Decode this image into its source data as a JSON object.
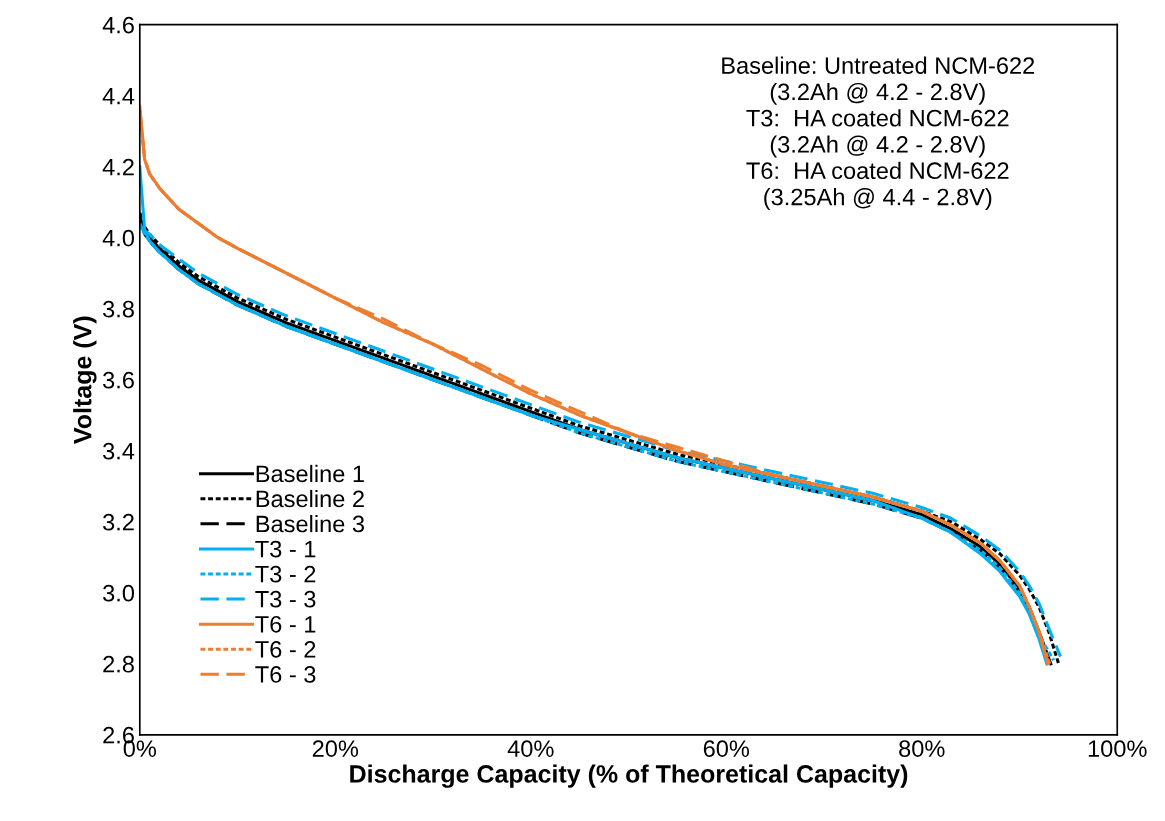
{
  "chart_data": {
    "type": "line",
    "xlabel": "Discharge Capacity (% of Theoretical Capacity)",
    "ylabel": "Voltage (V)",
    "x": [
      0,
      0.5,
      1,
      2,
      4,
      6,
      8,
      10,
      15,
      20,
      25,
      30,
      35,
      40,
      45,
      50,
      55,
      60,
      65,
      70,
      75,
      80,
      83,
      86,
      88,
      90,
      91,
      92,
      93
    ],
    "series": [
      {
        "name": "Baseline 1",
        "color": "#000000",
        "line_style": "solid",
        "x": [
          0,
          0.5,
          1,
          2,
          4,
          6,
          8,
          10,
          15,
          20,
          25,
          30,
          35,
          40,
          45,
          50,
          55,
          60,
          65,
          70,
          75,
          80,
          83,
          86,
          88,
          90,
          91,
          92,
          93.2
        ],
        "values": [
          4.06,
          4.02,
          4.0,
          3.97,
          3.92,
          3.88,
          3.85,
          3.82,
          3.76,
          3.71,
          3.66,
          3.61,
          3.56,
          3.51,
          3.46,
          3.42,
          3.38,
          3.35,
          3.32,
          3.29,
          3.26,
          3.22,
          3.18,
          3.13,
          3.08,
          3.01,
          2.96,
          2.89,
          2.8
        ]
      },
      {
        "name": "Baseline 2",
        "color": "#000000",
        "line_style": "dotted",
        "x": [
          0,
          0.5,
          1,
          2,
          4,
          6,
          8,
          10,
          15,
          20,
          25,
          30,
          35,
          40,
          45,
          50,
          55,
          60,
          65,
          70,
          75,
          80,
          83,
          86,
          88,
          90,
          91,
          92,
          93,
          94
        ],
        "values": [
          4.07,
          4.03,
          4.01,
          3.98,
          3.93,
          3.89,
          3.86,
          3.83,
          3.77,
          3.72,
          3.67,
          3.62,
          3.57,
          3.52,
          3.47,
          3.43,
          3.39,
          3.36,
          3.33,
          3.3,
          3.27,
          3.23,
          3.2,
          3.15,
          3.11,
          3.05,
          3.01,
          2.96,
          2.89,
          2.8
        ]
      },
      {
        "name": "Baseline 3",
        "color": "#000000",
        "line_style": "dashed",
        "values": [
          4.05,
          4.01,
          3.99,
          3.96,
          3.91,
          3.87,
          3.84,
          3.81,
          3.75,
          3.7,
          3.65,
          3.6,
          3.55,
          3.5,
          3.45,
          3.41,
          3.37,
          3.34,
          3.31,
          3.28,
          3.25,
          3.21,
          3.17,
          3.12,
          3.07,
          3.0,
          2.95,
          2.88,
          2.8
        ]
      },
      {
        "name": "T3 - 1",
        "color": "#00b0f0",
        "line_style": "solid",
        "x": [
          0,
          0.5,
          1,
          2,
          4,
          6,
          8,
          10,
          15,
          20,
          25,
          30,
          35,
          40,
          45,
          50,
          55,
          60,
          65,
          70,
          75,
          80,
          83,
          86,
          88,
          90,
          91,
          92,
          92.8
        ],
        "values": [
          4.2,
          4.02,
          3.99,
          3.96,
          3.91,
          3.87,
          3.84,
          3.81,
          3.75,
          3.7,
          3.65,
          3.6,
          3.55,
          3.5,
          3.46,
          3.42,
          3.38,
          3.35,
          3.32,
          3.29,
          3.26,
          3.21,
          3.17,
          3.11,
          3.06,
          2.99,
          2.94,
          2.87,
          2.8
        ]
      },
      {
        "name": "T3 - 2",
        "color": "#00b0f0",
        "line_style": "dotted",
        "x": [
          0,
          0.5,
          1,
          2,
          4,
          6,
          8,
          10,
          15,
          20,
          25,
          30,
          35,
          40,
          45,
          50,
          55,
          60,
          65,
          70,
          75,
          80,
          83,
          86,
          88,
          90,
          91,
          92,
          93.5
        ],
        "values": [
          4.04,
          4.01,
          3.99,
          3.96,
          3.91,
          3.87,
          3.84,
          3.81,
          3.75,
          3.7,
          3.65,
          3.6,
          3.55,
          3.5,
          3.45,
          3.41,
          3.37,
          3.34,
          3.31,
          3.28,
          3.25,
          3.21,
          3.17,
          3.12,
          3.07,
          3.0,
          2.95,
          2.88,
          2.81
        ]
      },
      {
        "name": "T3 - 3",
        "color": "#00b0f0",
        "line_style": "dashed",
        "x": [
          0,
          0.5,
          1,
          2,
          4,
          6,
          8,
          10,
          15,
          20,
          25,
          30,
          35,
          40,
          45,
          50,
          55,
          60,
          65,
          70,
          75,
          80,
          83,
          86,
          88,
          90,
          91,
          92,
          93,
          94.2
        ],
        "values": [
          4.03,
          4.02,
          4.01,
          3.98,
          3.94,
          3.9,
          3.87,
          3.84,
          3.78,
          3.73,
          3.68,
          3.63,
          3.58,
          3.53,
          3.48,
          3.44,
          3.4,
          3.37,
          3.34,
          3.31,
          3.28,
          3.24,
          3.21,
          3.16,
          3.12,
          3.06,
          3.02,
          2.97,
          2.9,
          2.82
        ]
      },
      {
        "name": "T6 - 1",
        "color": "#ed7d31",
        "line_style": "solid",
        "x": [
          0,
          0.5,
          1,
          2,
          4,
          6,
          8,
          10,
          15,
          20,
          25,
          30,
          35,
          40,
          45,
          50,
          55,
          60,
          65,
          70,
          75,
          80,
          83,
          86,
          88,
          90,
          91,
          92,
          92.9
        ],
        "values": [
          4.37,
          4.22,
          4.18,
          4.14,
          4.08,
          4.04,
          4.0,
          3.97,
          3.9,
          3.83,
          3.76,
          3.7,
          3.63,
          3.56,
          3.5,
          3.45,
          3.4,
          3.36,
          3.33,
          3.3,
          3.27,
          3.23,
          3.19,
          3.14,
          3.09,
          3.02,
          2.96,
          2.89,
          2.8
        ]
      },
      {
        "name": "T6 - 2",
        "color": "#ed7d31",
        "line_style": "dotted",
        "x": [
          0,
          0.5,
          1,
          2,
          4,
          6,
          8,
          10,
          15,
          20,
          25,
          30,
          35,
          40,
          45,
          50,
          55,
          60,
          65,
          70,
          75,
          80,
          83,
          86,
          88,
          90,
          91,
          92,
          93.1
        ],
        "values": [
          4.36,
          4.22,
          4.18,
          4.14,
          4.08,
          4.04,
          4.0,
          3.97,
          3.9,
          3.83,
          3.76,
          3.7,
          3.63,
          3.56,
          3.5,
          3.45,
          3.4,
          3.36,
          3.33,
          3.3,
          3.27,
          3.23,
          3.19,
          3.14,
          3.09,
          3.02,
          2.96,
          2.89,
          2.8
        ]
      },
      {
        "name": "T6 - 3",
        "color": "#ed7d31",
        "line_style": "dashed",
        "values": [
          4.35,
          4.22,
          4.18,
          4.14,
          4.08,
          4.04,
          4.0,
          3.97,
          3.9,
          3.83,
          3.77,
          3.7,
          3.64,
          3.57,
          3.51,
          3.45,
          3.41,
          3.37,
          3.33,
          3.3,
          3.27,
          3.23,
          3.19,
          3.14,
          3.09,
          3.02,
          2.96,
          2.89,
          2.8
        ]
      }
    ],
    "xlim": [
      0,
      100
    ],
    "xticks": [
      {
        "value": 0,
        "label": "0%"
      },
      {
        "value": 20,
        "label": "20%"
      },
      {
        "value": 40,
        "label": "40%"
      },
      {
        "value": 60,
        "label": "60%"
      },
      {
        "value": 80,
        "label": "80%"
      },
      {
        "value": 100,
        "label": "100%"
      }
    ],
    "ylim": [
      2.6,
      4.6
    ],
    "yticks": [
      {
        "value": 2.6,
        "label": "2.6"
      },
      {
        "value": 2.8,
        "label": "2.8"
      },
      {
        "value": 3.0,
        "label": "3.0"
      },
      {
        "value": 3.2,
        "label": "3.2"
      },
      {
        "value": 3.4,
        "label": "3.4"
      },
      {
        "value": 3.6,
        "label": "3.6"
      },
      {
        "value": 3.8,
        "label": "3.8"
      },
      {
        "value": 4.0,
        "label": "4.0"
      },
      {
        "value": 4.2,
        "label": "4.2"
      },
      {
        "value": 4.4,
        "label": "4.4"
      },
      {
        "value": 4.6,
        "label": "4.6"
      }
    ],
    "annotations": [
      "Baseline: Untreated NCM-622\n(3.2Ah @ 4.2 - 2.8V)\nT3:  HA coated NCM-622\n(3.2Ah @ 4.2 - 2.8V)\nT6:  HA coated NCM-622\n(3.25Ah @ 4.4 - 2.8V)"
    ],
    "grid": false,
    "legend": "bottom left",
    "marker": "none"
  }
}
